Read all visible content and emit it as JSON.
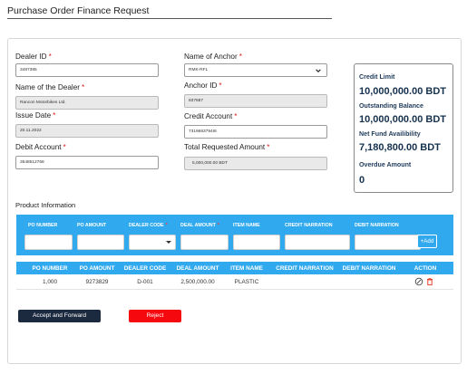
{
  "page": {
    "title": "Purchase Order Finance Request"
  },
  "form": {
    "dealer_id": {
      "label": "Dealer ID",
      "value": "3487385"
    },
    "dealer_name": {
      "label": "Name of the Dealer",
      "value": "Rancon Motorbikes Ltd."
    },
    "issue_date": {
      "label": "Issue Date",
      "value": "20.11.2022"
    },
    "debit_account": {
      "label": "Debit Account",
      "value": "3548512768"
    },
    "anchor_name": {
      "label": "Name of Anchor",
      "value": "RMK-RFL"
    },
    "anchor_id": {
      "label": "Anchor ID",
      "value": "837687"
    },
    "credit_account": {
      "label": "Credit Account",
      "value": "7319683794I8"
    },
    "total_requested": {
      "label": "Total Requested Amount",
      "value": "5,000,000.00 BDT"
    },
    "required_marker": "*"
  },
  "summary": {
    "credit_limit": {
      "label": "Credit Limit",
      "value": "10,000,000.00 BDT"
    },
    "outstanding_balance": {
      "label": "Outstanding Balance",
      "value": "10,000,000.00 BDT"
    },
    "net_fund": {
      "label": "Net Fund Availibility",
      "value": "7,180,800.00 BDT"
    },
    "overdue": {
      "label": "Overdue Amount",
      "value": "0"
    }
  },
  "product": {
    "section_title": "Product Information",
    "entry_headers": {
      "po_number": "PO NUMBER",
      "po_amount": "PO AMOUNT",
      "dealer_code": "DEALER CODE",
      "deal_amount": "DEAL AMOUNT",
      "item_name": "ITEM NAME",
      "credit_narration": "CREDIT NARRATION",
      "debit_narration": "DEBIT NARRATION"
    },
    "add_label": "+Add",
    "table_headers": {
      "po_number": "PO NUMBER",
      "po_amount": "PO AMOUNT",
      "dealer_code": "DEALER CODE",
      "deal_amount": "DEAL AMOUNT",
      "item_name": "ITEM NAME",
      "credit_narration": "CREDIT NARRATION",
      "debit_narration": "DEBIT NARRATION",
      "action": "ACTION"
    },
    "rows": [
      {
        "po_number": "1,000",
        "po_amount": "9273829",
        "dealer_code": "D-001",
        "deal_amount": "2,500,000.00",
        "item_name": "PLASTIC",
        "credit_narration": "",
        "debit_narration": ""
      }
    ]
  },
  "actions": {
    "accept": "Accept and Forward",
    "reject": "Reject"
  },
  "colors": {
    "accent": "#31a9ef",
    "primary": "#1c2a3f",
    "danger": "#f5090f",
    "summary_text": "#15314e"
  },
  "icons": {
    "edit": "edit-icon",
    "delete": "delete-icon",
    "dropdown": "chevron-down-icon"
  }
}
